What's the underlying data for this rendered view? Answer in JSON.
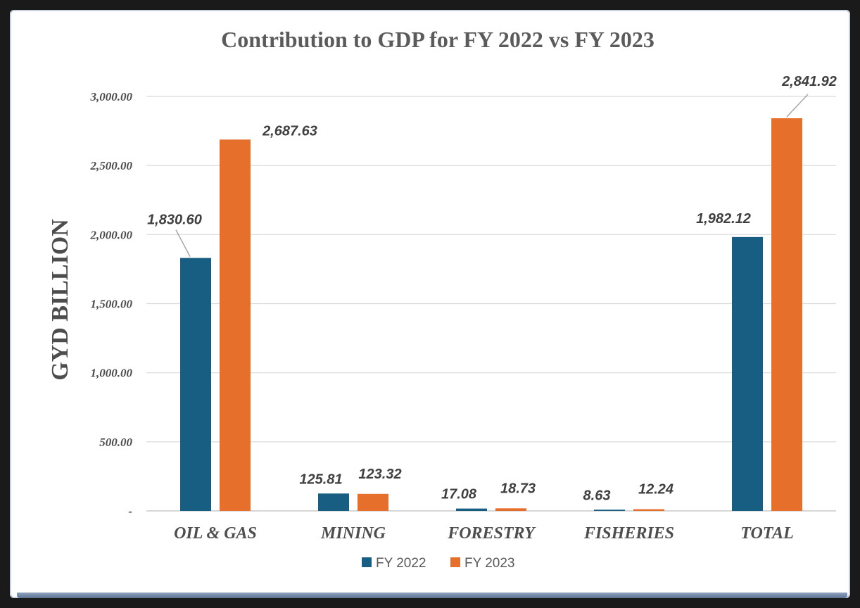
{
  "chart_data": {
    "type": "bar",
    "title": "Contribution to GDP for FY 2022 vs FY 2023",
    "ylabel": "GYD BILLION",
    "xlabel": "",
    "ylim": [
      0,
      3000
    ],
    "grid": true,
    "legend_position": "bottom",
    "categories": [
      "OIL & GAS",
      "MINING",
      "FORESTRY",
      "FISHERIES",
      "TOTAL"
    ],
    "yticks": [
      0,
      500,
      1000,
      1500,
      2000,
      2500,
      3000
    ],
    "ytick_labels": [
      "-",
      "500.00",
      "1,000.00",
      "1,500.00",
      "2,000.00",
      "2,500.00",
      "3,000.00"
    ],
    "series": [
      {
        "name": "FY 2022",
        "color": "#175e82",
        "values": [
          1830.6,
          125.81,
          17.08,
          8.63,
          1982.12
        ],
        "labels": [
          "1,830.60",
          "125.81",
          "17.08",
          "8.63",
          "1,982.12"
        ]
      },
      {
        "name": "FY 2023",
        "color": "#e76f2c",
        "values": [
          2687.63,
          123.32,
          18.73,
          12.24,
          2841.92
        ],
        "labels": [
          "2,687.63",
          "123.32",
          "18.73",
          "12.24",
          "2,841.92"
        ]
      }
    ]
  }
}
